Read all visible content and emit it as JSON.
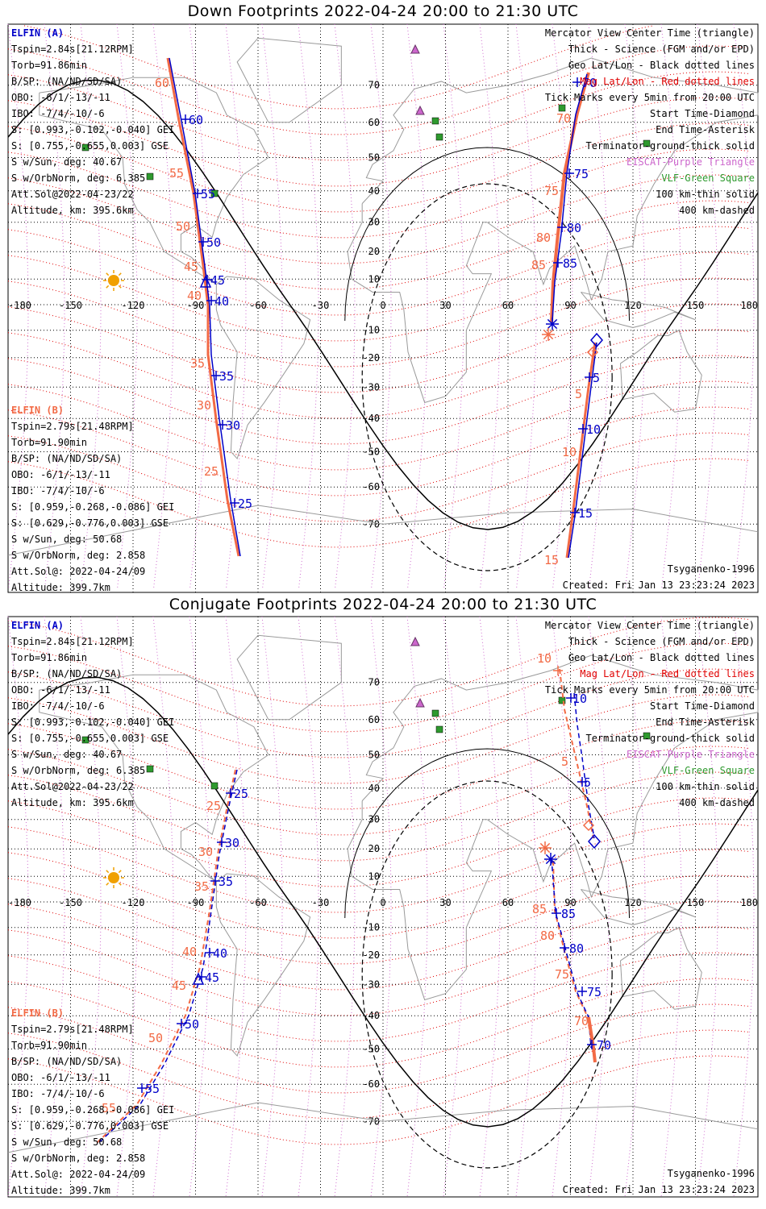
{
  "panels": [
    {
      "title": "Down Footprints 2022-04-24 20:00 to 21:30 UTC",
      "left_info": {
        "sat_a": "ELFIN (A)",
        "a_lines": [
          "Tspin=2.84s[21.12RPM]",
          "Torb=91.86min",
          "B/SP: (NA/ND/SD/SA)",
          "OBO: -6/1/-13/-11",
          "IBO: -7/4/-10/-6",
          "S: [0.993,-0.102,-0.040] GEI",
          "S: [0.755,-0.655,0.003] GSE",
          "S w/Sun, deg: 40.67",
          "S w/OrbNorm, deg: 6.385",
          "Att.Sol@2022-04-23/22",
          "Altitude, km: 395.6km"
        ],
        "sat_b": "ELFIN (B)",
        "b_lines": [
          "Tspin=2.79s[21.48RPM]",
          "Torb=91.90min",
          "B/SP: (NA/ND/SD/SA)",
          "OBO: -6/1/-13/-11",
          "IBO: -7/4/-10/-6",
          "S: [0.959,-0.268,-0.086] GEI",
          "S: [0.629,-0.776,0.003] GSE",
          "S w/Sun, deg: 50.68",
          "S w/OrbNorm, deg: 2.858",
          "Att.Sol@: 2022-04-24/09",
          "Altitude: 399.7km"
        ]
      },
      "right_info": [
        "Mercator View Center Time (triangle)",
        "Thick - Science (FGM and/or EPD)",
        "Geo Lat/Lon - Black dotted lines",
        "Mag Lat/Lon - Red dotted lines",
        "Tick Marks every 5min from 20:00 UTC",
        "Start Time-Diamond",
        "End Time-Asterisk",
        "Terminator-ground-thick solid",
        "EISCAT-Purple Triangle",
        "VLF-Green Square",
        "100 km-thin solid",
        "400 km-dashed"
      ],
      "model": "Tsyganenko-1996",
      "created": "Created: Fri Jan 13 23:23:24 2023"
    },
    {
      "title": "Conjugate Footprints 2022-04-24 20:00 to 21:30 UTC",
      "left_info": {
        "sat_a": "ELFIN (A)",
        "a_lines": [
          "Tspin=2.84s[21.12RPM]",
          "Torb=91.86min",
          "B/SP: (NA/ND/SD/SA)",
          "OBO: -6/1/-13/-11",
          "IBO: -7/4/-10/-6",
          "S: [0.993,-0.102,-0.040] GEI",
          "S: [0.755,-0.655,0.003] GSE",
          "S w/Sun, deg: 40.67",
          "S w/OrbNorm, deg: 6.385",
          "Att.Sol@2022-04-23/22",
          "Altitude, km: 395.6km"
        ],
        "sat_b": "ELFIN (B)",
        "b_lines": [
          "Tspin=2.79s[21.48RPM]",
          "Torb=91.90min",
          "B/SP: (NA/ND/SD/SA)",
          "OBO: -6/1/-13/-11",
          "IBO: -7/4/-10/-6",
          "S: [0.959,-0.268,-0.086] GEI",
          "S: [0.629,-0.776,0.003] GSE",
          "S w/Sun, deg: 50.68",
          "S w/OrbNorm, deg: 2.858",
          "Att.Sol@: 2022-04-24/09",
          "Altitude: 399.7km"
        ]
      },
      "right_info": [
        "Mercator View Center Time (triangle)",
        "Thick - Science (FGM and/or EPD)",
        "Geo Lat/Lon - Black dotted lines",
        "Mag Lat/Lon - Red dotted lines",
        "Tick Marks every 5min from 20:00 UTC",
        "Start Time-Diamond",
        "End Time-Asterisk",
        "Terminator-ground-thick solid",
        "EISCAT-Purple Triangle",
        "VLF-Green Square",
        "100 km-thin solid",
        "400 km-dashed"
      ],
      "model": "Tsyganenko-1996",
      "created": "Created: Fri Jan 13 23:23:24 2023"
    }
  ],
  "map": {
    "lon_ticks": [
      -180,
      -150,
      -120,
      -90,
      -60,
      -30,
      0,
      30,
      60,
      90,
      120,
      150,
      180
    ],
    "lat_ticks": [
      70,
      60,
      50,
      40,
      30,
      20,
      10,
      -10,
      -20,
      -30,
      -40,
      -50,
      -60,
      -70
    ]
  },
  "tracks": {
    "down": {
      "a_labels": [
        "60",
        "55",
        "50",
        "45",
        "40",
        "35",
        "30",
        "25"
      ],
      "b_labels": [
        "60",
        "55",
        "50",
        "45",
        "40",
        "35",
        "30",
        "25"
      ],
      "a2_labels": [
        "70",
        "75",
        "80",
        "85"
      ],
      "b2_labels": [
        "70",
        "75",
        "80",
        "85"
      ],
      "a3_labels": [
        "5",
        "10",
        "15"
      ],
      "b3_labels": [
        "5",
        "10",
        "15"
      ]
    },
    "conj": {
      "a_labels": [
        "25",
        "30",
        "35",
        "40",
        "45",
        "50",
        "55"
      ],
      "b_labels": [
        "25",
        "30",
        "35",
        "40",
        "45",
        "50",
        "55"
      ],
      "a2_labels": [
        "85",
        "80",
        "75",
        "70"
      ],
      "b2_labels": [
        "85",
        "80",
        "75",
        "70"
      ],
      "a3_labels": [
        "10",
        "5"
      ],
      "b3_labels": [
        "10",
        "5"
      ]
    }
  },
  "colors": {
    "elfin_a": "#0000c8",
    "elfin_b": "#f26a45",
    "mag_grid": "#e00000",
    "eiscat": "#cc66cc",
    "vlf": "#2e9a2e",
    "vlf_text": "#2e9a2e",
    "eiscat_text": "#cc66cc",
    "sun": "#f0a000"
  }
}
